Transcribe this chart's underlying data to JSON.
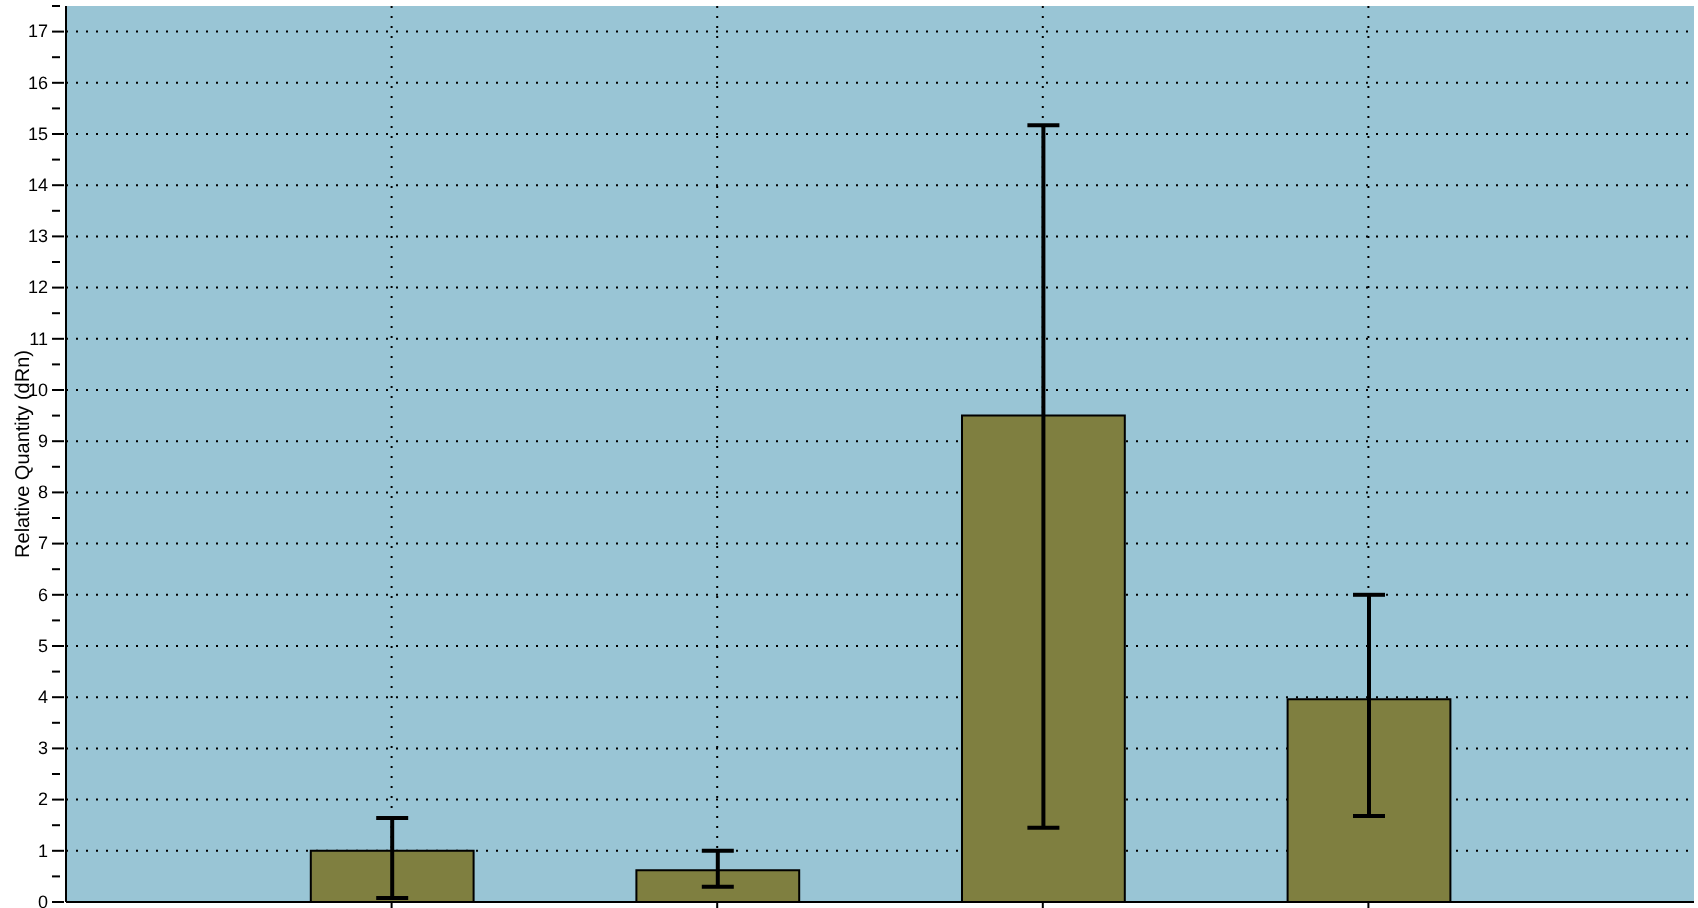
{
  "chart_data": {
    "type": "bar",
    "ylabel": "Relative Quantity (dRn)",
    "categories": [
      null,
      null,
      null,
      null
    ],
    "values": [
      1.0,
      0.62,
      9.5,
      3.96
    ],
    "errors": [
      [
        0.08,
        1.64
      ],
      [
        0.3,
        1.0
      ],
      [
        1.45,
        15.17
      ],
      [
        1.68,
        6.0
      ]
    ],
    "color": "#7f7f40",
    "ylim": [
      0,
      17.5
    ],
    "yticks": [
      0,
      {
        "value": 0.5,
        "label": null
      },
      1,
      {
        "value": 1.5,
        "label": null
      },
      2,
      {
        "value": 2.5,
        "label": null
      },
      3,
      {
        "value": 3.5,
        "label": null
      },
      4,
      {
        "value": 4.5,
        "label": null
      },
      5,
      {
        "value": 5.5,
        "label": null
      },
      6,
      {
        "value": 6.5,
        "label": null
      },
      7,
      {
        "value": 7.5,
        "label": null
      },
      8,
      {
        "value": 8.5,
        "label": null
      },
      9,
      {
        "value": 9.5,
        "label": null
      },
      10,
      {
        "value": 10.5,
        "label": null
      },
      11,
      {
        "value": 11.5,
        "label": null
      },
      12,
      {
        "value": 12.5,
        "label": null
      },
      13,
      {
        "value": 13.5,
        "label": null
      },
      14,
      {
        "value": 14.5,
        "label": null
      },
      15,
      {
        "value": 15.5,
        "label": null
      },
      16,
      {
        "value": 16.5,
        "label": null
      },
      17,
      {
        "value": 17.5,
        "label": null
      }
    ],
    "grid": true,
    "tick_labels": "y"
  }
}
